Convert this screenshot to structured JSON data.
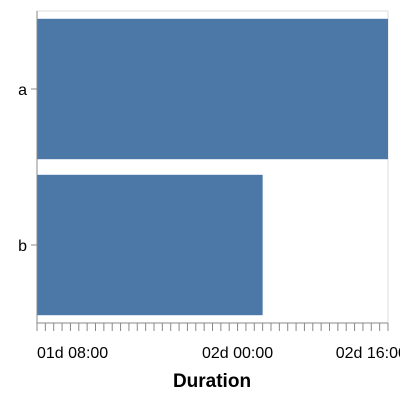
{
  "chart_data": {
    "type": "bar",
    "orientation": "horizontal",
    "categories": [
      "a",
      "b"
    ],
    "values": [
      "02d 18:00",
      "02d 03:00"
    ],
    "x_ticks": [
      "01d 08:00",
      "02d 00:00",
      "02d 16:00"
    ],
    "xlim": [
      "01d 00:00",
      "02d 18:00"
    ],
    "xlabel": "Duration",
    "ylabel": "",
    "title": "",
    "grid": false,
    "colors": {
      "bar": "#4c78a8",
      "axis": "#888888",
      "frame": "#dddddd"
    }
  }
}
